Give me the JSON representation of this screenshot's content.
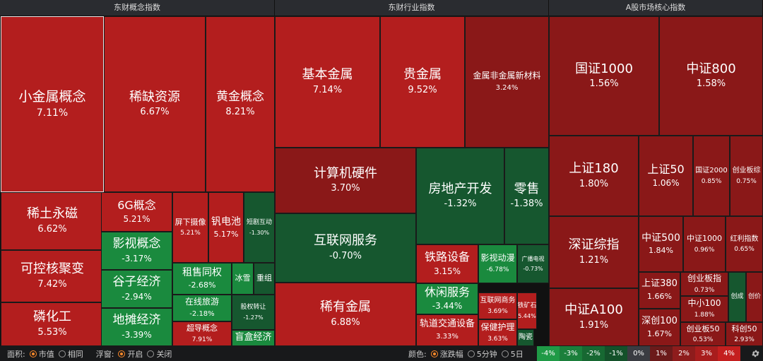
{
  "headers": {
    "concept": "东财概念指数",
    "industry": "东财行业指数",
    "market": "A股市场核心指数"
  },
  "colors": {
    "red_strong": "#b31e1e",
    "red_dark": "#8a1818",
    "green_strong": "#1a8a3e",
    "green_dark": "#16572f",
    "neutral": "#3a3c42"
  },
  "tiles": [
    {
      "name": "小金属概念",
      "value": "7.11%"
    },
    {
      "name": "稀缺资源",
      "value": "6.67%"
    },
    {
      "name": "黄金概念",
      "value": "8.21%"
    },
    {
      "name": "稀土永磁",
      "value": "6.62%"
    },
    {
      "name": "可控核聚变",
      "value": "7.42%"
    },
    {
      "name": "磷化工",
      "value": "5.53%"
    },
    {
      "name": "6G概念",
      "value": "5.21%"
    },
    {
      "name": "屏下摄像",
      "value": "5.21%"
    },
    {
      "name": "钒电池",
      "value": "5.17%"
    },
    {
      "name": "短剧互动",
      "value": "-1.30%"
    },
    {
      "name": "影视概念",
      "value": "-3.17%"
    },
    {
      "name": "谷子经济",
      "value": "-2.94%"
    },
    {
      "name": "地摊经济",
      "value": "-3.39%"
    },
    {
      "name": "租售同权",
      "value": "-2.68%"
    },
    {
      "name": "冰雪",
      "value": ""
    },
    {
      "name": "重组",
      "value": ""
    },
    {
      "name": "在线旅游",
      "value": "-2.18%"
    },
    {
      "name": "超导概念",
      "value": "7.91%"
    },
    {
      "name": "股权转让",
      "value": "-1.27%"
    },
    {
      "name": "盲盒经济",
      "value": ""
    },
    {
      "name": "基本金属",
      "value": "7.14%"
    },
    {
      "name": "贵金属",
      "value": "9.52%"
    },
    {
      "name": "金属非金属新材料",
      "value": "3.24%"
    },
    {
      "name": "计算机硬件",
      "value": "3.70%"
    },
    {
      "name": "房地产开发",
      "value": "-1.32%"
    },
    {
      "name": "零售",
      "value": "-1.38%"
    },
    {
      "name": "互联网服务",
      "value": "-0.70%"
    },
    {
      "name": "铁路设备",
      "value": "3.15%"
    },
    {
      "name": "影视动漫",
      "value": "-6.78%"
    },
    {
      "name": "广播电视",
      "value": "-0.73%"
    },
    {
      "name": "稀有金属",
      "value": "6.88%"
    },
    {
      "name": "休闲服务",
      "value": "-3.44%"
    },
    {
      "name": "互联网商务",
      "value": "3.69%"
    },
    {
      "name": "铁矿石",
      "value": "5.44%"
    },
    {
      "name": "轨道交通设备",
      "value": "3.33%"
    },
    {
      "name": "保健护理",
      "value": "3.63%"
    },
    {
      "name": "陶瓷",
      "value": ""
    },
    {
      "name": "国证1000",
      "value": "1.56%"
    },
    {
      "name": "中证800",
      "value": "1.58%"
    },
    {
      "name": "上证180",
      "value": "1.80%"
    },
    {
      "name": "上证50",
      "value": "1.06%"
    },
    {
      "name": "国证2000",
      "value": "0.85%"
    },
    {
      "name": "创业板综",
      "value": "0.75%"
    },
    {
      "name": "深证综指",
      "value": "1.21%"
    },
    {
      "name": "中证500",
      "value": "1.84%"
    },
    {
      "name": "中证1000",
      "value": "0.96%"
    },
    {
      "name": "红利指数",
      "value": "0.65%"
    },
    {
      "name": "上证380",
      "value": "1.66%"
    },
    {
      "name": "创业板指",
      "value": "0.73%"
    },
    {
      "name": "创成",
      "value": ""
    },
    {
      "name": "创价",
      "value": ""
    },
    {
      "name": "中小100",
      "value": "1.88%"
    },
    {
      "name": "深创100",
      "value": "1.67%"
    },
    {
      "name": "创业板50",
      "value": "0.53%"
    },
    {
      "name": "科创50",
      "value": "2.93%"
    },
    {
      "name": "中证A100",
      "value": "1.91%"
    }
  ],
  "bottom": {
    "area_label": "面积:",
    "area_opt1": "市值",
    "area_opt2": "相同",
    "float_label": "浮窗:",
    "float_opt1": "开启",
    "float_opt2": "关闭",
    "color_label": "颜色:",
    "color_opt1": "涨跌幅",
    "color_opt2": "5分钟",
    "color_opt3": "5日"
  },
  "legend": [
    {
      "label": "-4%",
      "color": "#1f9a46"
    },
    {
      "label": "-3%",
      "color": "#1b7f3b"
    },
    {
      "label": "-2%",
      "color": "#176832"
    },
    {
      "label": "-1%",
      "color": "#14512a"
    },
    {
      "label": "0%",
      "color": "#3a3c42"
    },
    {
      "label": "1%",
      "color": "#6b1a1a"
    },
    {
      "label": "2%",
      "color": "#8e1c1c"
    },
    {
      "label": "3%",
      "color": "#a81d1d"
    },
    {
      "label": "4%",
      "color": "#c41f1f"
    }
  ]
}
